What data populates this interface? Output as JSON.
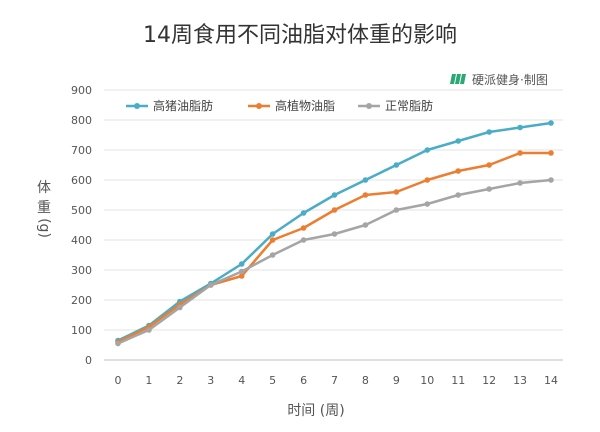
{
  "credit": {
    "logo_icon": "pie-fork-logo-icon",
    "text": "硬派健身·制图",
    "color": "#2aa876"
  },
  "chart_data": {
    "type": "line",
    "title": "14周食用不同油脂对体重的影响",
    "xlabel": "时间 (周)",
    "ylabel_chars": [
      "体",
      "重"
    ],
    "ylabel_unit": "(g)",
    "x": [
      0,
      1,
      2,
      3,
      4,
      5,
      6,
      7,
      8,
      9,
      10,
      11,
      12,
      13,
      14
    ],
    "x_tick_labels": [
      "0",
      "1",
      "2",
      "3",
      "4",
      "5",
      "6",
      "7",
      "8",
      "9",
      "10",
      "11",
      "12",
      "13",
      "14"
    ],
    "ylim": [
      0,
      900
    ],
    "y_ticks": [
      0,
      100,
      200,
      300,
      400,
      500,
      600,
      700,
      800,
      900
    ],
    "y_tick_labels": [
      "0",
      "100",
      "200",
      "300",
      "400",
      "500",
      "600",
      "700",
      "800",
      "900"
    ],
    "grid": "horizontal",
    "legend_position": "top-left",
    "series": [
      {
        "name": "高猪油脂肪",
        "color": "#4bacc6",
        "values": [
          65,
          115,
          195,
          255,
          320,
          420,
          490,
          550,
          600,
          650,
          700,
          730,
          760,
          775,
          790
        ]
      },
      {
        "name": "高植物油脂",
        "color": "#ed7d31",
        "values": [
          60,
          110,
          185,
          250,
          280,
          400,
          440,
          500,
          550,
          560,
          600,
          630,
          650,
          690,
          690
        ]
      },
      {
        "name": "正常脂肪",
        "color": "#a5a5a5",
        "values": [
          55,
          100,
          175,
          250,
          295,
          350,
          400,
          420,
          450,
          500,
          520,
          550,
          570,
          590,
          600
        ]
      }
    ]
  }
}
